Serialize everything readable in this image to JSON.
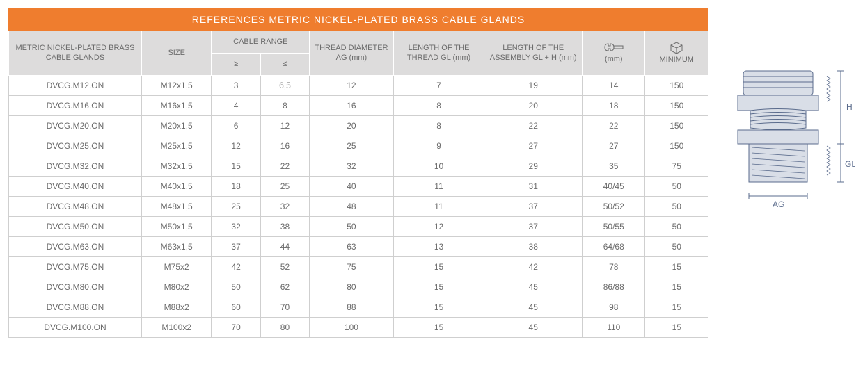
{
  "title": "REFERENCES METRIC NICKEL-PLATED BRASS CABLE GLANDS",
  "colors": {
    "header_bg": "#ef7d2e",
    "header_text": "#ffffff",
    "thead_bg": "#dddcdc",
    "text": "#6b6b6b",
    "border": "#cfcfcf",
    "diagram_stroke": "#5a6b8c",
    "diagram_fill": "#d9dee7"
  },
  "columns": {
    "ref": "METRIC NICKEL-PLATED BRASS CABLE GLANDS",
    "size": "SIZE",
    "range_group": "CABLE RANGE",
    "range_ge": "≥",
    "range_le": "≤",
    "ag": "THREAD DIAMETER AG (mm)",
    "gl": "LENGTH OF THE THREAD GL (mm)",
    "glh": "LENGTH OF THE ASSEMBLY GL + H (mm)",
    "wrench_unit": "(mm)",
    "min": "MINIMUM"
  },
  "col_widths": {
    "ref": "19%",
    "size": "10%",
    "ge": "7%",
    "le": "7%",
    "ag": "12%",
    "gl": "13%",
    "glh": "14%",
    "wrench": "9%",
    "min": "9%"
  },
  "rows": [
    {
      "ref": "DVCG.M12.ON",
      "size": "M12x1,5",
      "ge": "3",
      "le": "6,5",
      "ag": "12",
      "gl": "7",
      "glh": "19",
      "wrench": "14",
      "min": "150"
    },
    {
      "ref": "DVCG.M16.ON",
      "size": "M16x1,5",
      "ge": "4",
      "le": "8",
      "ag": "16",
      "gl": "8",
      "glh": "20",
      "wrench": "18",
      "min": "150"
    },
    {
      "ref": "DVCG.M20.ON",
      "size": "M20x1,5",
      "ge": "6",
      "le": "12",
      "ag": "20",
      "gl": "8",
      "glh": "22",
      "wrench": "22",
      "min": "150"
    },
    {
      "ref": "DVCG.M25.ON",
      "size": "M25x1,5",
      "ge": "12",
      "le": "16",
      "ag": "25",
      "gl": "9",
      "glh": "27",
      "wrench": "27",
      "min": "150"
    },
    {
      "ref": "DVCG.M32.ON",
      "size": "M32x1,5",
      "ge": "15",
      "le": "22",
      "ag": "32",
      "gl": "10",
      "glh": "29",
      "wrench": "35",
      "min": "75"
    },
    {
      "ref": "DVCG.M40.ON",
      "size": "M40x1,5",
      "ge": "18",
      "le": "25",
      "ag": "40",
      "gl": "11",
      "glh": "31",
      "wrench": "40/45",
      "min": "50"
    },
    {
      "ref": "DVCG.M48.ON",
      "size": "M48x1,5",
      "ge": "25",
      "le": "32",
      "ag": "48",
      "gl": "11",
      "glh": "37",
      "wrench": "50/52",
      "min": "50"
    },
    {
      "ref": "DVCG.M50.ON",
      "size": "M50x1,5",
      "ge": "32",
      "le": "38",
      "ag": "50",
      "gl": "12",
      "glh": "37",
      "wrench": "50/55",
      "min": "50"
    },
    {
      "ref": "DVCG.M63.ON",
      "size": "M63x1,5",
      "ge": "37",
      "le": "44",
      "ag": "63",
      "gl": "13",
      "glh": "38",
      "wrench": "64/68",
      "min": "50"
    },
    {
      "ref": "DVCG.M75.ON",
      "size": "M75x2",
      "ge": "42",
      "le": "52",
      "ag": "75",
      "gl": "15",
      "glh": "42",
      "wrench": "78",
      "min": "15"
    },
    {
      "ref": "DVCG.M80.ON",
      "size": "M80x2",
      "ge": "50",
      "le": "62",
      "ag": "80",
      "gl": "15",
      "glh": "45",
      "wrench": "86/88",
      "min": "15"
    },
    {
      "ref": "DVCG.M88.ON",
      "size": "M88x2",
      "ge": "60",
      "le": "70",
      "ag": "88",
      "gl": "15",
      "glh": "45",
      "wrench": "98",
      "min": "15"
    },
    {
      "ref": "DVCG.M100.ON",
      "size": "M100x2",
      "ge": "70",
      "le": "80",
      "ag": "100",
      "gl": "15",
      "glh": "45",
      "wrench": "110",
      "min": "15"
    }
  ],
  "diagram_labels": {
    "ag": "AG",
    "gl": "GL",
    "h": "H"
  }
}
